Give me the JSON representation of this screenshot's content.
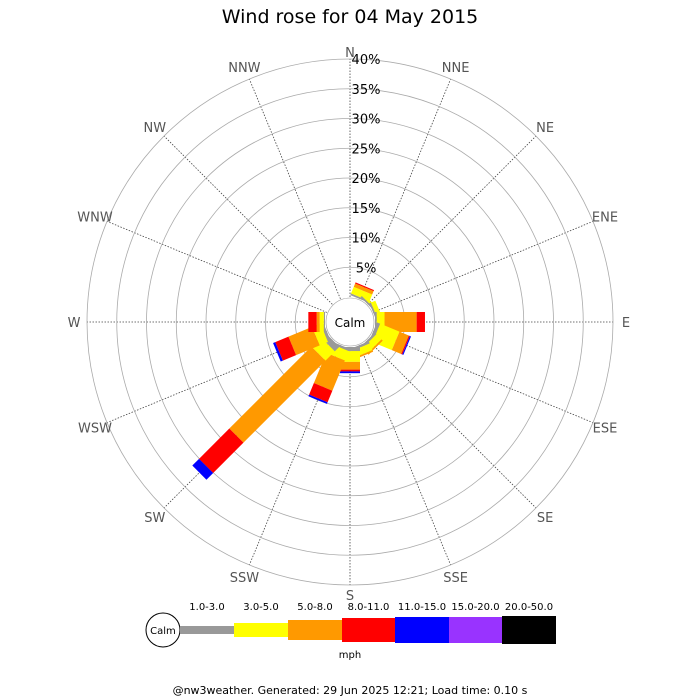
{
  "title": "Wind rose for 04 May 2015",
  "footer": "@nw3weather. Generated: 29 Jun 2025 12:21; Load time: 0.10 s",
  "calm_label": "Calm",
  "legend_calm_label": "Calm",
  "unit_label": "mph",
  "chart_data": {
    "type": "wind-rose",
    "title": "Wind rose for 04 May 2015",
    "directions": [
      "N",
      "NNE",
      "NE",
      "ENE",
      "E",
      "ESE",
      "SE",
      "SSE",
      "S",
      "SSW",
      "SW",
      "WSW",
      "W",
      "WNW",
      "NW",
      "NNW"
    ],
    "radial_ticks": [
      "5%",
      "10%",
      "15%",
      "20%",
      "25%",
      "30%",
      "35%",
      "40%"
    ],
    "radial_max": 40,
    "grid": true,
    "speed_bins": [
      {
        "label": "1.0-3.0",
        "color": "#999999"
      },
      {
        "label": "3.0-5.0",
        "color": "#ffff00"
      },
      {
        "label": "5.0-8.0",
        "color": "#ff9900"
      },
      {
        "label": "8.0-11.0",
        "color": "#ff0000"
      },
      {
        "label": "11.0-15.0",
        "color": "#0000ff"
      },
      {
        "label": "15.0-20.0",
        "color": "#9933ff"
      },
      {
        "label": "20.0-50.0",
        "color": "#000000"
      }
    ],
    "series": [
      {
        "direction": "N",
        "values": [
          0,
          0,
          0,
          0,
          0,
          0,
          0
        ]
      },
      {
        "direction": "NNE",
        "values": [
          0.3,
          1.2,
          0.6,
          0.2,
          0,
          0,
          0
        ]
      },
      {
        "direction": "NE",
        "values": [
          0.3,
          0.4,
          0,
          0,
          0,
          0,
          0
        ]
      },
      {
        "direction": "ENE",
        "values": [
          0.3,
          0.8,
          0,
          0,
          0,
          0,
          0
        ]
      },
      {
        "direction": "E",
        "values": [
          0.3,
          1.3,
          5.4,
          1.4,
          0,
          0,
          0
        ]
      },
      {
        "direction": "ESE",
        "values": [
          0.6,
          3.5,
          1.7,
          0.2,
          0.2,
          0,
          0
        ]
      },
      {
        "direction": "SE",
        "values": [
          0.4,
          1.2,
          0.3,
          0,
          0,
          0,
          0
        ]
      },
      {
        "direction": "SSE",
        "values": [
          0.4,
          1.2,
          0.3,
          0,
          0,
          0,
          0
        ]
      },
      {
        "direction": "S",
        "values": [
          0.7,
          1.8,
          1.3,
          0.3,
          0.3,
          0,
          0
        ]
      },
      {
        "direction": "SSW",
        "values": [
          0.4,
          1.7,
          5.5,
          2.1,
          0.3,
          0,
          0
        ]
      },
      {
        "direction": "SW",
        "values": [
          1.1,
          2.2,
          19.5,
          7.2,
          1.6,
          0,
          0
        ]
      },
      {
        "direction": "WSW",
        "values": [
          0.5,
          1.5,
          4.3,
          2.4,
          0.4,
          0,
          0
        ]
      },
      {
        "direction": "W",
        "values": [
          0.2,
          0.7,
          0.5,
          1.4,
          0,
          0,
          0
        ]
      },
      {
        "direction": "WNW",
        "values": [
          0,
          0,
          0,
          0,
          0,
          0,
          0
        ]
      },
      {
        "direction": "NW",
        "values": [
          0,
          0,
          0,
          0,
          0,
          0,
          0
        ]
      },
      {
        "direction": "NNW",
        "values": [
          0,
          0,
          0,
          0,
          0,
          0,
          0
        ]
      }
    ]
  }
}
